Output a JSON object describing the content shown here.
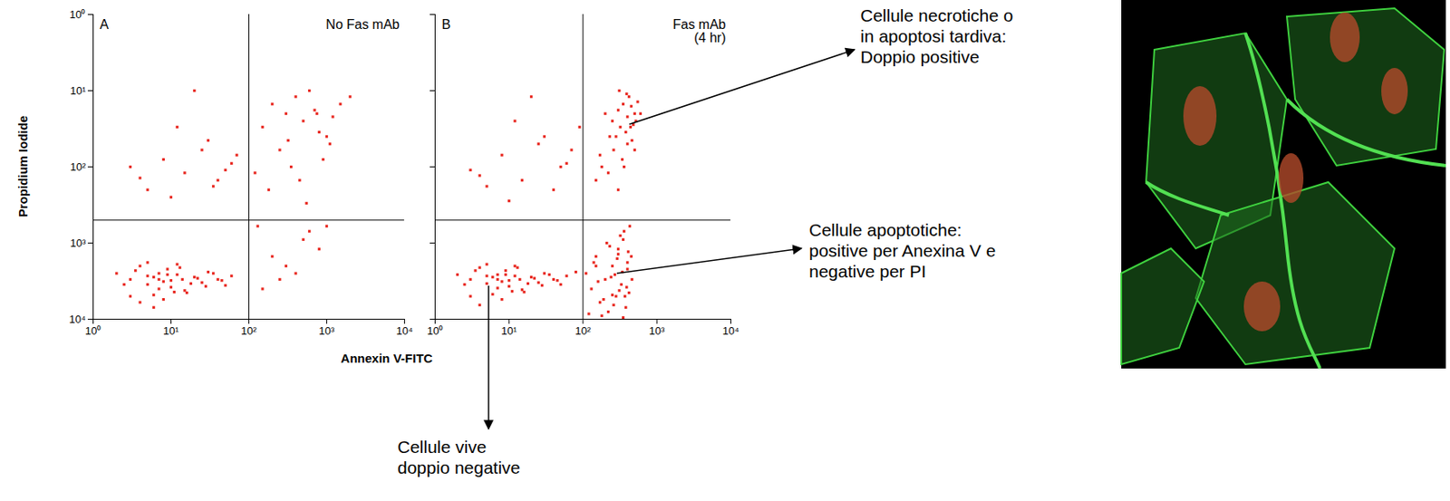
{
  "chart_data": [
    {
      "type": "scatter",
      "panel": "A",
      "title": "No Fas mAb",
      "x_label": "Annexin V-FITC",
      "y_label": "Propidium Iodide",
      "log": true,
      "color": "#e8261e",
      "marker": "square",
      "xlim": [
        1,
        10000
      ],
      "ylim": [
        10000,
        1
      ],
      "xticks": [
        {
          "value": 1,
          "label": "10⁰"
        },
        {
          "value": 10,
          "label": "10¹"
        },
        {
          "value": 100,
          "label": "10²"
        },
        {
          "value": 1000,
          "label": "10³"
        },
        {
          "value": 10000,
          "label": "10⁴"
        }
      ],
      "yticks": [
        {
          "value": 1,
          "label": "10⁰"
        },
        {
          "value": 10,
          "label": "10¹"
        },
        {
          "value": 100,
          "label": "10²"
        },
        {
          "value": 1000,
          "label": "10³"
        },
        {
          "value": 10000,
          "label": "10⁴"
        }
      ],
      "gates": {
        "x": 100,
        "y": 500
      },
      "x": [
        2,
        3,
        4,
        5,
        6,
        7,
        8,
        9,
        10,
        12,
        14,
        16,
        20,
        25,
        30,
        40,
        50,
        3,
        4,
        5,
        6,
        7,
        8,
        10,
        12,
        15,
        2.5,
        3.5,
        5,
        7,
        9,
        11,
        13,
        18,
        22,
        28,
        35,
        45,
        60,
        6,
        3,
        8,
        15,
        25,
        40,
        60,
        5,
        12,
        30,
        4,
        20,
        50,
        70,
        10,
        35,
        150,
        200,
        300,
        400,
        500,
        700,
        1000,
        1500,
        250,
        350,
        600,
        800,
        1200,
        180,
        450,
        900,
        2000,
        120,
        320,
        550,
        750,
        1100,
        130,
        200,
        300,
        500,
        800,
        1000,
        400,
        250,
        600,
        150
      ],
      "values": [
        2500,
        3000,
        2000,
        3500,
        2800,
        4000,
        3200,
        2200,
        3800,
        2600,
        3000,
        4500,
        2800,
        3300,
        2400,
        3000,
        3600,
        5000,
        6000,
        1800,
        4800,
        2500,
        5500,
        3100,
        1900,
        4200,
        3500,
        2300,
        2700,
        3000,
        2600,
        4400,
        2100,
        3400,
        2900,
        3700,
        2500,
        3100,
        2700,
        7000,
        100,
        80,
        120,
        60,
        150,
        90,
        200,
        30,
        45,
        140,
        10,
        110,
        70,
        250,
        180,
        30,
        15,
        20,
        12,
        25,
        18,
        40,
        15,
        60,
        100,
        10,
        35,
        22,
        200,
        150,
        80,
        12,
        120,
        45,
        300,
        20,
        50,
        600,
        1500,
        2000,
        900,
        1200,
        600,
        2500,
        3000,
        700,
        4000
      ]
    },
    {
      "type": "scatter",
      "panel": "B",
      "title": "Fas mAb (4 hr)",
      "log": true,
      "color": "#e8261e",
      "marker": "square",
      "tick_labels": "x",
      "xlim": [
        1,
        10000
      ],
      "ylim": [
        10000,
        1
      ],
      "xticks": [
        {
          "value": 1,
          "label": "10⁰"
        },
        {
          "value": 10,
          "label": "10¹"
        },
        {
          "value": 100,
          "label": "10²"
        },
        {
          "value": 1000,
          "label": "10³"
        },
        {
          "value": 10000,
          "label": "10⁴"
        }
      ],
      "yticks": [
        1,
        10,
        100,
        1000,
        10000
      ],
      "gates": {
        "x": 100,
        "y": 500
      },
      "x": [
        2,
        3,
        4,
        5,
        6,
        7,
        8,
        9,
        10,
        12,
        14,
        16,
        20,
        25,
        30,
        40,
        50,
        3,
        4,
        5,
        6,
        7,
        8,
        10,
        12,
        15,
        2.5,
        3.5,
        5,
        7,
        9,
        11,
        13,
        18,
        22,
        28,
        35,
        45,
        60,
        80,
        110,
        130,
        150,
        170,
        200,
        220,
        250,
        280,
        300,
        330,
        350,
        380,
        400,
        420,
        450,
        120,
        140,
        160,
        190,
        210,
        240,
        260,
        290,
        310,
        340,
        360,
        390,
        410,
        430,
        460,
        180,
        230,
        270,
        320,
        370,
        400,
        150,
        250,
        350,
        300,
        200,
        250,
        300,
        350,
        400,
        450,
        500,
        550,
        280,
        320,
        380,
        420,
        480,
        520,
        260,
        340,
        400,
        460,
        150,
        180,
        220,
        170,
        230,
        300,
        360,
        440,
        500,
        600,
        310,
        390,
        3,
        8,
        15,
        25,
        40,
        60,
        5,
        12,
        30,
        4,
        20,
        50,
        70,
        10,
        90
      ],
      "values": [
        2600,
        3000,
        2100,
        3400,
        2800,
        3900,
        3200,
        2300,
        3700,
        2700,
        3000,
        4400,
        2800,
        3300,
        2500,
        3000,
        3500,
        5000,
        6500,
        1900,
        4700,
        2600,
        5500,
        3100,
        2000,
        4100,
        3500,
        2300,
        2700,
        3000,
        2600,
        4300,
        2100,
        3400,
        2900,
        3600,
        2600,
        3100,
        2700,
        2400,
        2500,
        4000,
        1500,
        6000,
        3000,
        8000,
        2000,
        5000,
        1200,
        3500,
        900,
        7000,
        2200,
        4500,
        1500,
        8500,
        1800,
        3200,
        5500,
        1000,
        2800,
        6500,
        1600,
        4200,
        2400,
        700,
        3800,
        1300,
        600,
        3000,
        9000,
        1100,
        2600,
        800,
        5000,
        1800,
        2000,
        4800,
        9500,
        1400,
        20,
        25,
        18,
        15,
        22,
        16,
        20,
        14,
        40,
        30,
        35,
        12,
        28,
        25,
        60,
        80,
        50,
        45,
        150,
        100,
        120,
        70,
        40,
        200,
        100,
        30,
        60,
        20,
        10,
        11,
        110,
        70,
        150,
        50,
        200,
        90,
        180,
        25,
        40,
        130,
        12,
        100,
        60,
        280,
        30
      ]
    }
  ],
  "annotations": [
    {
      "lines": [
        "Cellule necrotiche o",
        "in apoptosi tardiva:",
        "Doppio positive"
      ]
    },
    {
      "lines": [
        "Cellule apoptotiche:",
        "positive per Anexina V e",
        "negative per PI"
      ]
    },
    {
      "lines": [
        "Cellule vive",
        "doppio negative"
      ]
    }
  ]
}
